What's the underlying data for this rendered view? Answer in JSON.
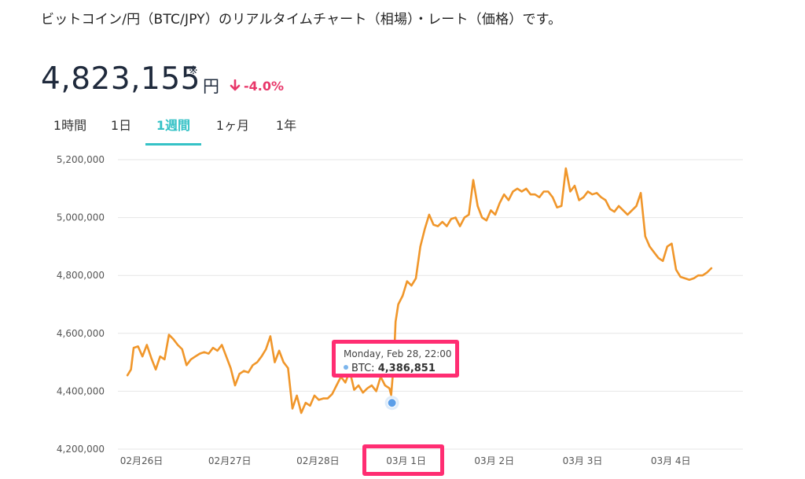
{
  "headline": "ビットコイン/円（BTC/JPY）のリアルタイムチャート（相場）・レート（価格）です。",
  "price": {
    "value": "4,823,155",
    "mark": "※",
    "unit": "円",
    "change": "-4.0%"
  },
  "tabs": [
    {
      "label": "1時間",
      "active": false
    },
    {
      "label": "1日",
      "active": false
    },
    {
      "label": "1週間",
      "active": true
    },
    {
      "label": "1ヶ月",
      "active": false
    },
    {
      "label": "1年",
      "active": false
    }
  ],
  "tooltip": {
    "date": "Monday, Feb 28, 22:00",
    "series": "BTC:",
    "value": "4,386,851"
  },
  "colors": {
    "line": "#f0962a",
    "accent": "#35c2c6",
    "down": "#e8376a",
    "highlight": "#ff2d72",
    "marker": "#7cb5ec"
  },
  "chart_data": {
    "type": "line",
    "ylim": [
      4200000,
      5200000
    ],
    "yticks": [
      4200000,
      4400000,
      4600000,
      4800000,
      5000000,
      5200000
    ],
    "ytick_labels": [
      "4,200,000",
      "4,400,000",
      "4,600,000",
      "4,800,000",
      "5,000,000",
      "5,200,000"
    ],
    "x_tick_labels": [
      "02月26日",
      "02月27日",
      "02月28日",
      "03月 1日",
      "03月 2日",
      "03月 3日",
      "03月 4日"
    ],
    "x_tick_day": [
      0,
      1,
      2,
      3,
      4,
      5,
      6
    ],
    "xlim_day": [
      -0.07,
      6.73
    ],
    "grid": true,
    "hover_point": {
      "day": 2.92,
      "value": 4386851
    },
    "series": [
      {
        "day": [
          -0.07,
          -0.03,
          0.0,
          0.05,
          0.1,
          0.15,
          0.2,
          0.25,
          0.3,
          0.35,
          0.4,
          0.45,
          0.5,
          0.55,
          0.6,
          0.65,
          0.7,
          0.75,
          0.8,
          0.85,
          0.9,
          0.95,
          1.0,
          1.05,
          1.1,
          1.15,
          1.2,
          1.25,
          1.3,
          1.35,
          1.4,
          1.45,
          1.5,
          1.55,
          1.6,
          1.65,
          1.7,
          1.75,
          1.8,
          1.85,
          1.9,
          1.95,
          2.0,
          2.05,
          2.1,
          2.15,
          2.2,
          2.25,
          2.3,
          2.35,
          2.4,
          2.45,
          2.5,
          2.55,
          2.6,
          2.65,
          2.7,
          2.75,
          2.8,
          2.85,
          2.9,
          2.92,
          2.95,
          2.97,
          3.0,
          3.05,
          3.1,
          3.15,
          3.2,
          3.25,
          3.3,
          3.35,
          3.4,
          3.45,
          3.5,
          3.55,
          3.6,
          3.65,
          3.7,
          3.75,
          3.8,
          3.85,
          3.9,
          3.95,
          4.0,
          4.05,
          4.1,
          4.15,
          4.2,
          4.25,
          4.3,
          4.35,
          4.4,
          4.45,
          4.5,
          4.55,
          4.6,
          4.65,
          4.7,
          4.75,
          4.8,
          4.85,
          4.9,
          4.95,
          5.0,
          5.05,
          5.1,
          5.15,
          5.2,
          5.25,
          5.3,
          5.35,
          5.4,
          5.45,
          5.5,
          5.55,
          5.6,
          5.65,
          5.7,
          5.75,
          5.8,
          5.85,
          5.9,
          5.95,
          6.0,
          6.05,
          6.1,
          6.15,
          6.2,
          6.25,
          6.3,
          6.35,
          6.4,
          6.45,
          6.5,
          6.55,
          6.6,
          6.65,
          6.7,
          6.73
        ],
        "values": [
          4455000,
          4475000,
          4550000,
          4555000,
          4520000,
          4560000,
          4515000,
          4475000,
          4520000,
          4510000,
          4595000,
          4580000,
          4560000,
          4545000,
          4490000,
          4510000,
          4520000,
          4530000,
          4535000,
          4530000,
          4550000,
          4540000,
          4560000,
          4520000,
          4480000,
          4420000,
          4460000,
          4470000,
          4465000,
          4490000,
          4500000,
          4520000,
          4545000,
          4590000,
          4500000,
          4540000,
          4500000,
          4480000,
          4340000,
          4385000,
          4325000,
          4360000,
          4350000,
          4385000,
          4370000,
          4375000,
          4375000,
          4390000,
          4420000,
          4450000,
          4430000,
          4470000,
          4405000,
          4420000,
          4395000,
          4410000,
          4420000,
          4400000,
          4450000,
          4420000,
          4410000,
          4386851,
          4500000,
          4640000,
          4700000,
          4730000,
          4780000,
          4765000,
          4790000,
          4900000,
          4960000,
          5010000,
          4975000,
          4970000,
          4985000,
          4970000,
          4995000,
          5000000,
          4970000,
          5000000,
          5010000,
          5130000,
          5040000,
          5000000,
          4990000,
          5025000,
          5010000,
          5050000,
          5080000,
          5060000,
          5090000,
          5100000,
          5090000,
          5100000,
          5080000,
          5080000,
          5070000,
          5090000,
          5090000,
          5070000,
          5035000,
          5040000,
          5170000,
          5090000,
          5110000,
          5060000,
          5070000,
          5090000,
          5080000,
          5085000,
          5070000,
          5060000,
          5030000,
          5020000,
          5040000,
          5025000,
          5010000,
          5025000,
          5040000,
          5085000,
          4935000,
          4900000,
          4880000,
          4860000,
          4850000,
          4900000,
          4910000,
          4820000,
          4795000,
          4790000,
          4785000,
          4790000,
          4800000,
          4800000,
          4810000,
          4825000
        ]
      }
    ]
  }
}
